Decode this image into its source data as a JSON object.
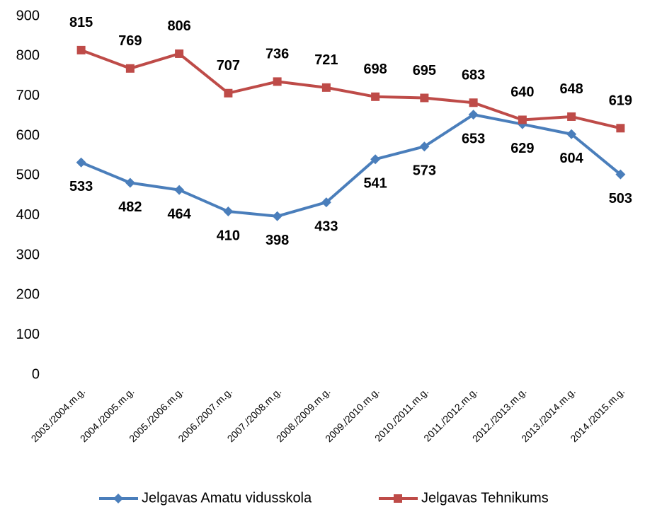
{
  "chart_data": {
    "type": "line",
    "categories": [
      "2003./2004.m.g.",
      "2004./2005.m.g.",
      "2005./2006.m.g.",
      "2006./2007.m.g.",
      "2007./2008.m.g.",
      "2008./2009.m.g.",
      "2009./2010.m.g.",
      "2010./2011.m.g.",
      "2011./2012.m.g.",
      "2012./2013.m.g.",
      "2013./2014.m.g.",
      "2014./2015.m.g."
    ],
    "series": [
      {
        "name": "Jelgavas Amatu vidusskola",
        "color": "#4a7ebb",
        "marker": "diamond",
        "values": [
          533,
          482,
          464,
          410,
          398,
          433,
          541,
          573,
          653,
          629,
          604,
          503
        ]
      },
      {
        "name": "Jelgavas Tehnikums",
        "color": "#be4b48",
        "marker": "square",
        "values": [
          815,
          769,
          806,
          707,
          736,
          721,
          698,
          695,
          683,
          640,
          648,
          619
        ]
      }
    ],
    "ylim": [
      0,
      900
    ],
    "yticks": [
      0,
      100,
      200,
      300,
      400,
      500,
      600,
      700,
      800,
      900
    ],
    "grid": false,
    "legend": "bottom"
  }
}
